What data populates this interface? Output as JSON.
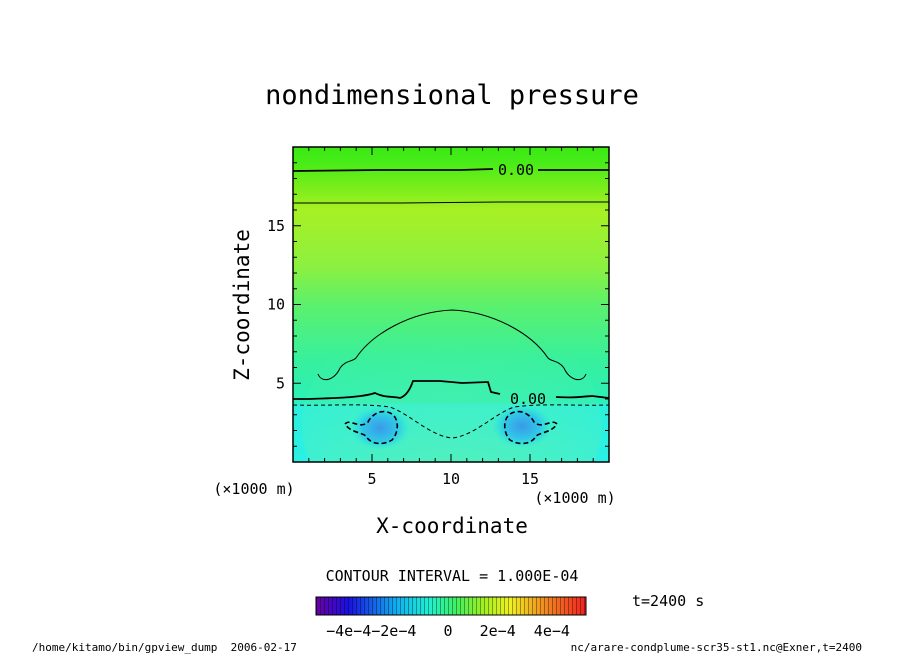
{
  "chart_data": {
    "type": "heatmap",
    "title": "nondimensional pressure",
    "xlabel": "X-coordinate",
    "ylabel": "Z-coordinate",
    "x_unit_label": "(×1000 m)",
    "y_unit_label": "(×1000 m)",
    "xlim": [
      0,
      20
    ],
    "ylim": [
      0,
      20
    ],
    "x_ticks": [
      5,
      10,
      15
    ],
    "y_ticks": [
      5,
      10,
      15
    ],
    "x_tick_labels": [
      "5",
      "10",
      "15"
    ],
    "y_tick_labels": [
      "5",
      "10",
      "15"
    ],
    "contour_interval_text": "CONTOUR INTERVAL = 1.000E-04",
    "contour_labels": [
      "0.00",
      "0.00"
    ],
    "colorbar": {
      "range": [
        -0.0006,
        0.0006
      ],
      "tick_labels_text": "−4e−4−2e−4   0   2e−4  4e−4"
    },
    "time_label": "t=2400 s",
    "footer_left": "/home/kitamo/bin/gpview_dump  2006-02-17",
    "footer_right": "nc/arare-condplume-scr35-st1.nc@Exner,t=2400",
    "grid": false
  }
}
